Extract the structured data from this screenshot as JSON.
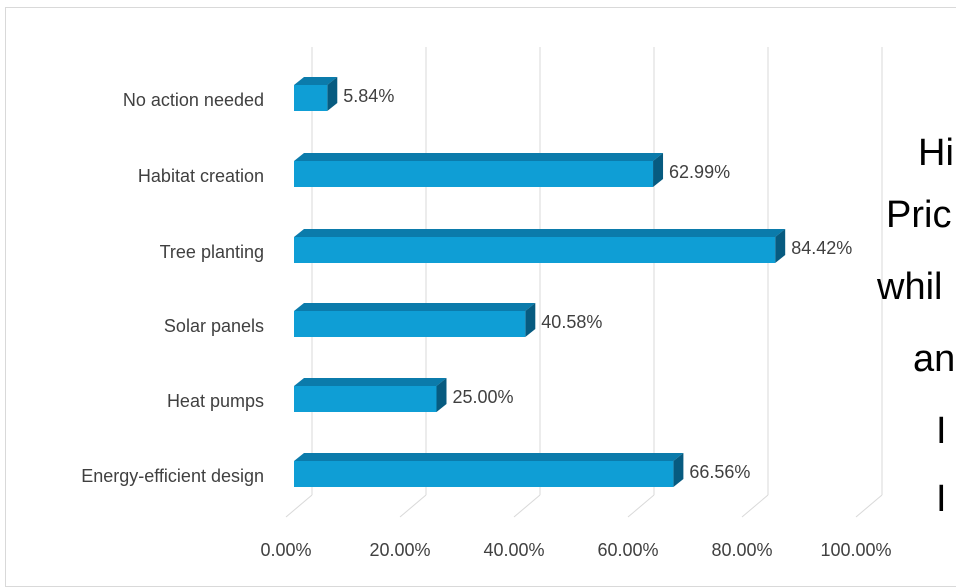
{
  "chart_data": {
    "type": "bar",
    "orientation": "horizontal",
    "style": "3d",
    "categories": [
      "No action needed",
      "Habitat creation",
      "Tree planting",
      "Solar panels",
      "Heat pumps",
      "Energy-efficient design"
    ],
    "values": [
      5.84,
      62.99,
      84.42,
      40.58,
      25.0,
      66.56
    ],
    "value_labels": [
      "5.84%",
      "62.99%",
      "84.42%",
      "40.58%",
      "25.00%",
      "66.56%"
    ],
    "xlim": [
      0,
      100
    ],
    "x_ticks": [
      0,
      20,
      40,
      60,
      80,
      100
    ],
    "x_tick_labels": [
      "0.00%",
      "20.00%",
      "40.00%",
      "60.00%",
      "80.00%",
      "100.00%"
    ],
    "title": "",
    "xlabel": "",
    "ylabel": "",
    "grid": true,
    "legend": "none",
    "colors": {
      "bar_front": "#0f9ed5",
      "bar_top": "#0b7bab",
      "bar_side": "#075b80",
      "gridline": "#d9d9d9",
      "text": "#404040"
    }
  },
  "overlay_text": {
    "line1": "Hi",
    "line2": "Pric",
    "line3": "whil",
    "line4": "an",
    "line5": "I",
    "line6": "I"
  }
}
